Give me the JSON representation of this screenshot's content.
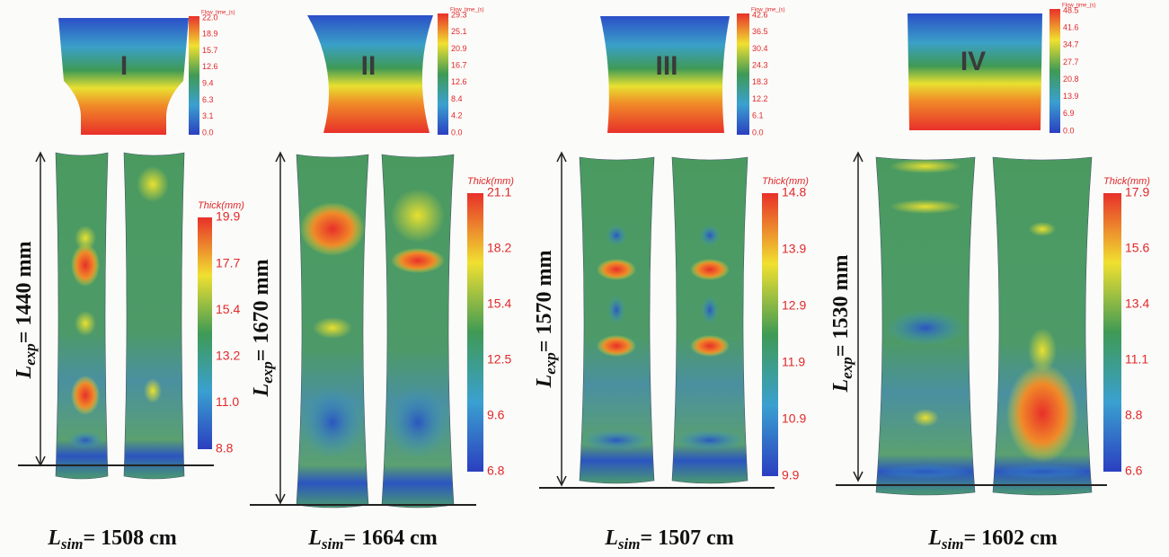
{
  "panels": [
    {
      "label": "I",
      "flow_title": "Flow_time_(s)",
      "flow_ticks": [
        "22.0",
        "18.9",
        "15.7",
        "12.6",
        "9.4",
        "6.3",
        "3.1",
        "0.0"
      ],
      "thick_title": "Thick(mm)",
      "thick_ticks": [
        "19.9",
        "17.7",
        "15.4",
        "13.2",
        "11.0",
        "8.8"
      ],
      "exp_symbol": "L",
      "exp_sub": "exp",
      "exp_text": "= 1440 mm",
      "sim_symbol": "L",
      "sim_sub": "sim",
      "sim_text": "= 1508 cm"
    },
    {
      "label": "II",
      "flow_title": "Flow_time_(s)",
      "flow_ticks": [
        "29.3",
        "25.1",
        "20.9",
        "16.7",
        "12.6",
        "8.4",
        "4.2",
        "0.0"
      ],
      "thick_title": "Thick(mm)",
      "thick_ticks": [
        "21.1",
        "18.2",
        "15.4",
        "12.5",
        "9.6",
        "6.8"
      ],
      "exp_symbol": "L",
      "exp_sub": "exp",
      "exp_text": "= 1670 mm",
      "sim_symbol": "L",
      "sim_sub": "sim",
      "sim_text": "= 1664 cm"
    },
    {
      "label": "III",
      "flow_title": "Flow_time_(s)",
      "flow_ticks": [
        "42.6",
        "36.5",
        "30.4",
        "24.3",
        "18.3",
        "12.2",
        "6.1",
        "0.0"
      ],
      "thick_title": "Thick(mm)",
      "thick_ticks": [
        "14.8",
        "13.9",
        "12.9",
        "11.9",
        "10.9",
        "9.9"
      ],
      "exp_symbol": "L",
      "exp_sub": "exp",
      "exp_text": "= 1570 mm",
      "sim_symbol": "L",
      "sim_sub": "sim",
      "sim_text": "= 1507 cm"
    },
    {
      "label": "IV",
      "flow_title": "Flow_time_(s)",
      "flow_ticks": [
        "48.5",
        "41.6",
        "34.7",
        "27.7",
        "20.8",
        "13.9",
        "6.9",
        "0.0"
      ],
      "thick_title": "Thick(mm)",
      "thick_ticks": [
        "17.9",
        "15.6",
        "13.4",
        "11.1",
        "8.8",
        "6.6"
      ],
      "exp_symbol": "L",
      "exp_sub": "exp",
      "exp_text": "= 1530 mm",
      "sim_symbol": "L",
      "sim_sub": "sim",
      "sim_text": "= 1602 cm"
    }
  ]
}
